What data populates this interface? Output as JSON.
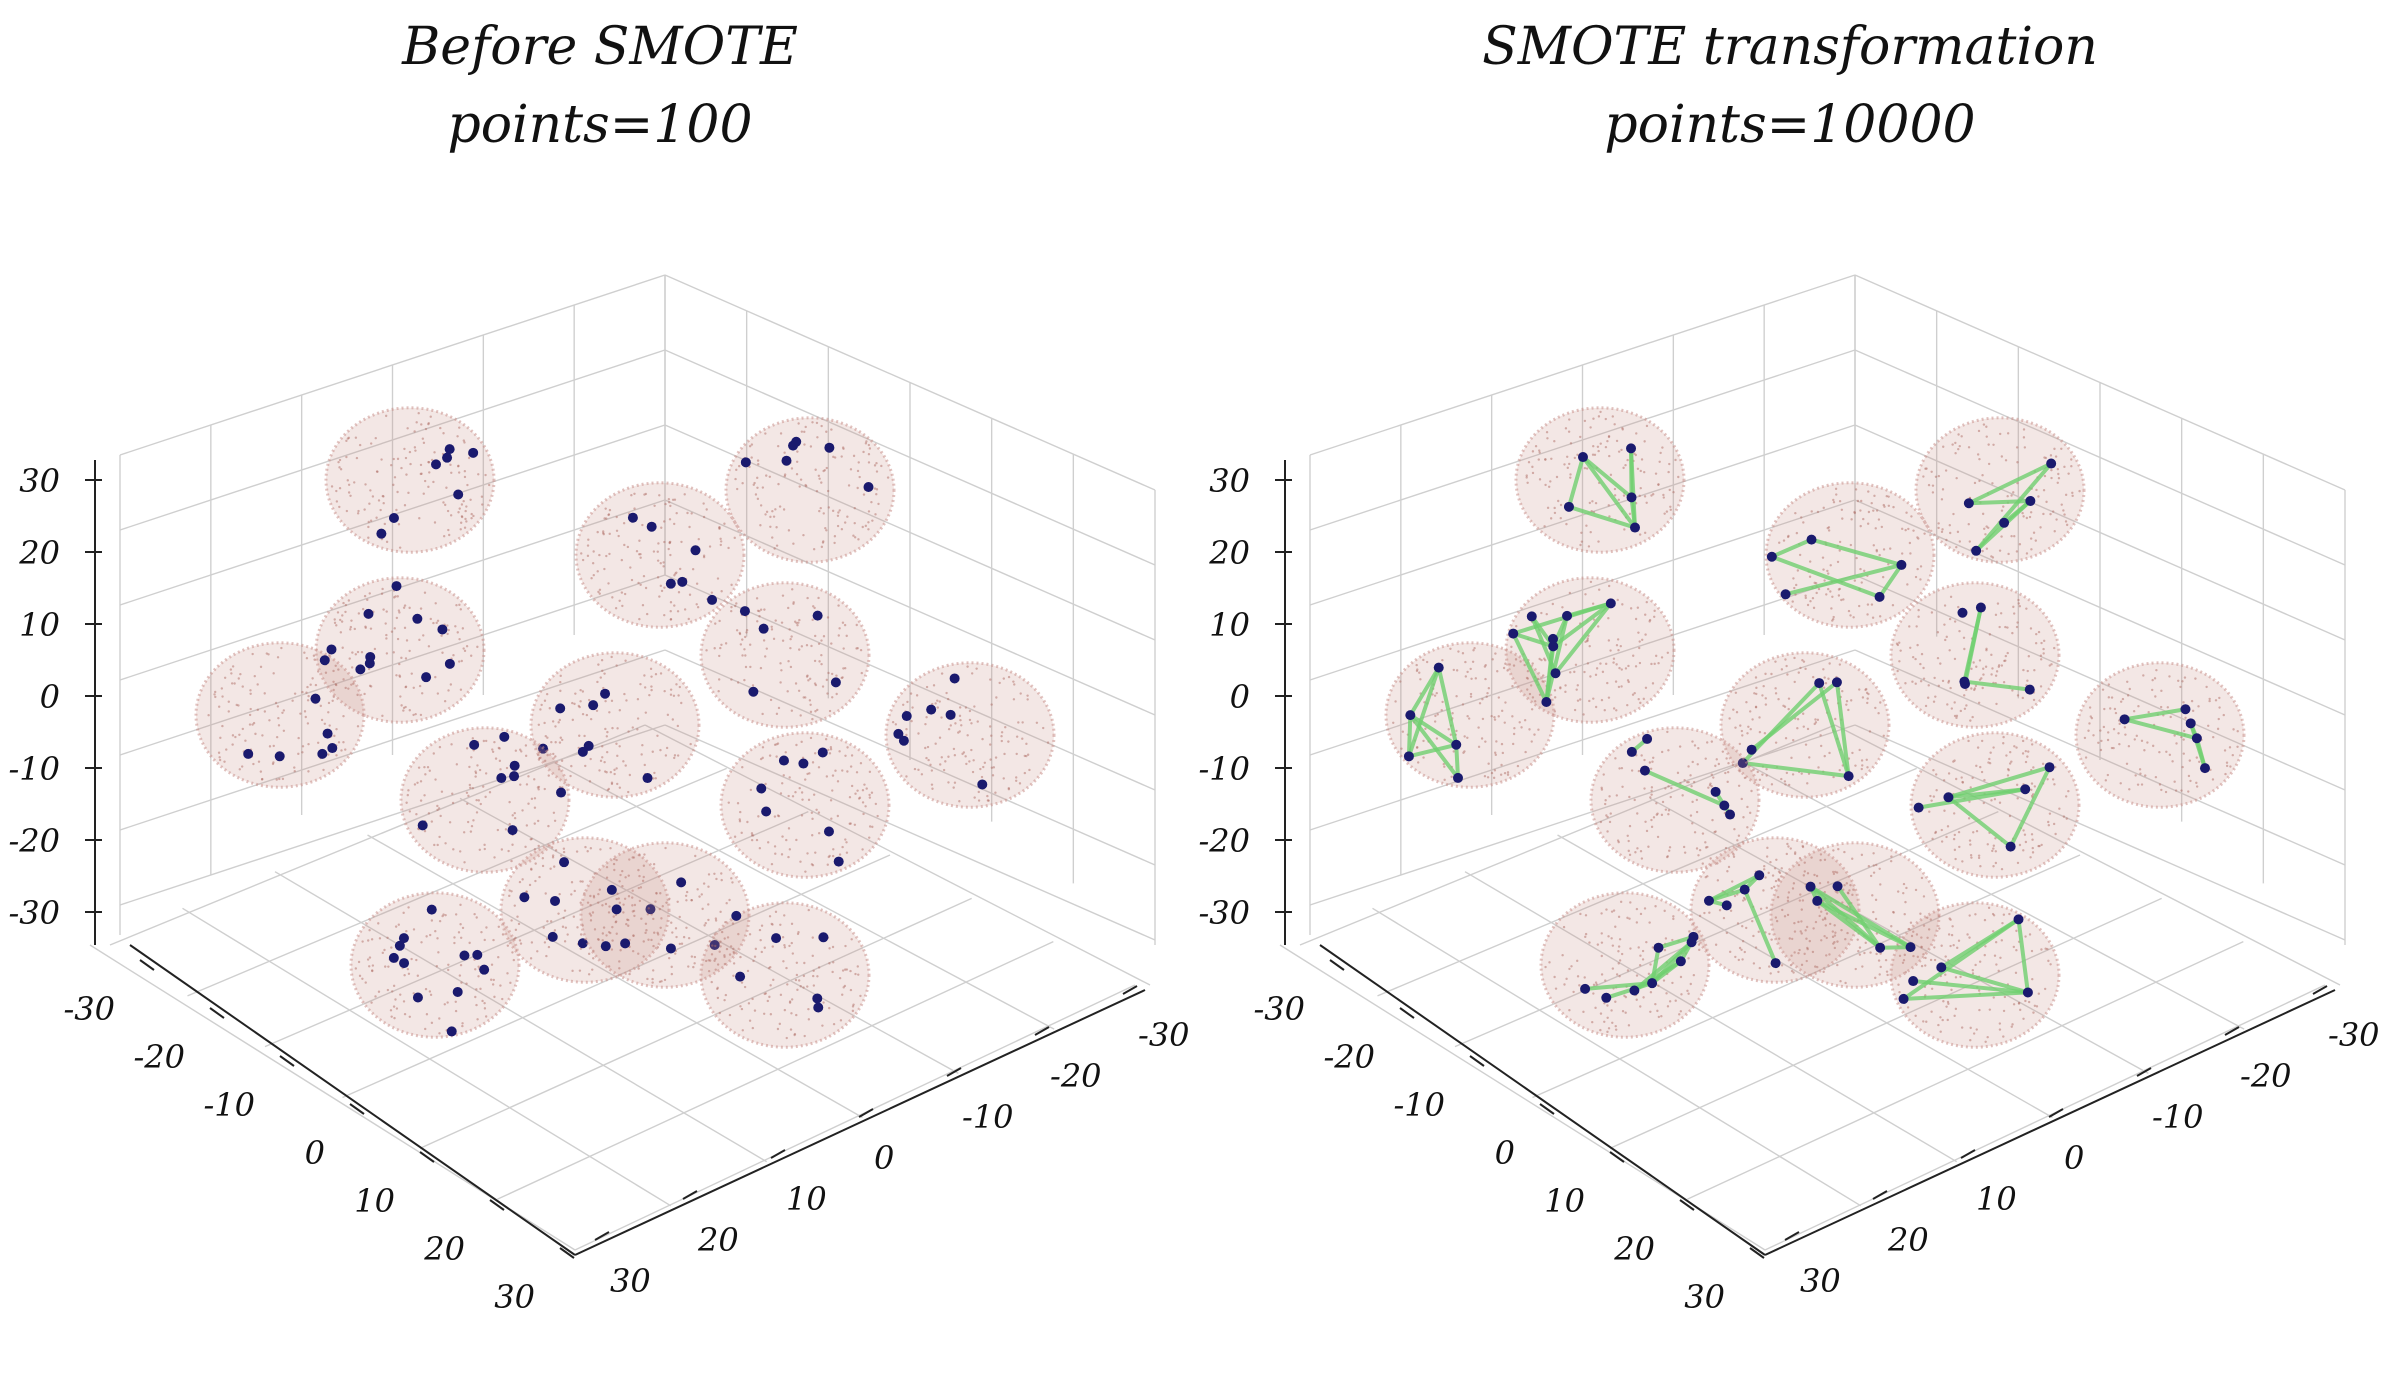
{
  "chart_data": [
    {
      "type": "scatter",
      "title_line1": "Before SMOTE",
      "title_line2": "points=100",
      "axis_ticks": [
        "-30",
        "-20",
        "-10",
        "0",
        "10",
        "20",
        "30"
      ],
      "xlim": [
        -30,
        30
      ],
      "ylim": [
        -30,
        30
      ],
      "zlim": [
        -30,
        30
      ],
      "grid": true,
      "cluster_count": 14,
      "original_points": 100,
      "colors": {
        "cloud": "#c9908a",
        "points": "#1a1a6e"
      },
      "clusters": [
        {
          "id": 1,
          "n": 7
        },
        {
          "id": 2,
          "n": 6
        },
        {
          "id": 3,
          "n": 11
        },
        {
          "id": 4,
          "n": 6
        },
        {
          "id": 5,
          "n": 6
        },
        {
          "id": 6,
          "n": 5
        },
        {
          "id": 7,
          "n": 7
        },
        {
          "id": 8,
          "n": 8
        },
        {
          "id": 9,
          "n": 7
        },
        {
          "id": 10,
          "n": 7
        },
        {
          "id": 11,
          "n": 6
        },
        {
          "id": 12,
          "n": 11
        },
        {
          "id": 13,
          "n": 6
        },
        {
          "id": 14,
          "n": 7
        }
      ]
    },
    {
      "type": "scatter",
      "title_line1": "SMOTE transformation",
      "title_line2": "points=10000",
      "axis_ticks": [
        "-30",
        "-20",
        "-10",
        "0",
        "10",
        "20",
        "30"
      ],
      "xlim": [
        -30,
        30
      ],
      "ylim": [
        -30,
        30
      ],
      "zlim": [
        -30,
        30
      ],
      "grid": true,
      "cluster_count": 14,
      "original_points": 100,
      "total_points": 10000,
      "colors": {
        "cloud": "#c9908a",
        "points": "#1a1a6e",
        "synthetic": "#6fcf6f"
      }
    }
  ]
}
